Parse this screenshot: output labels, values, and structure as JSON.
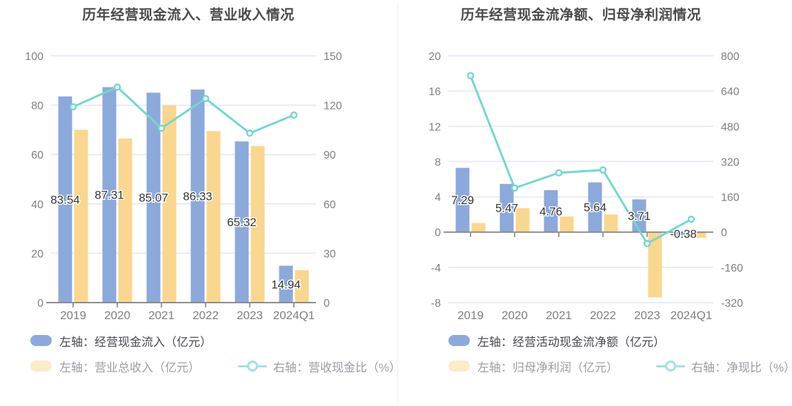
{
  "colors": {
    "bar_blue": "#8CA9DB",
    "bar_yellow": "#FAD78E",
    "line_teal": "#73D7CD",
    "legend_yellow": "#FCEBC9",
    "legend_teal": "#9FE2DC",
    "grid": "#E6EBF5",
    "axis_line": "#8A8A8A",
    "tick": "#999999",
    "axis_text": "#7F7F7F",
    "title": "#4A4A4A",
    "data_label": "#333333",
    "legend_text_primary": "#47474F",
    "legend_text_secondary": "#9C9CA4",
    "divider": "#EFEFEF",
    "background": "#FFFFFF"
  },
  "chart_data": [
    {
      "type": "bar",
      "combo": "dual-axis bar + line",
      "title": "历年经营现金流入、营业收入情况",
      "categories": [
        "2019",
        "2020",
        "2021",
        "2022",
        "2023",
        "2024Q1"
      ],
      "series": [
        {
          "name": "左轴：经营现金流入（亿元）",
          "type": "bar",
          "axis": "left",
          "color_key": "bar_blue",
          "values": [
            83.54,
            87.31,
            85.07,
            86.33,
            65.32,
            14.94
          ],
          "labels": [
            "83.54",
            "87.31",
            "85.07",
            "86.33",
            "65.32",
            "14.94"
          ]
        },
        {
          "name": "左轴：营业总收入（亿元）",
          "type": "bar",
          "axis": "left",
          "color_key": "bar_yellow",
          "values": [
            70.0,
            66.5,
            80.0,
            69.5,
            63.5,
            13.1
          ]
        },
        {
          "name": "右轴：营收现金比（%）",
          "type": "line",
          "axis": "right",
          "color_key": "line_teal",
          "values": [
            119,
            131,
            106,
            124,
            103,
            114
          ]
        }
      ],
      "left_axis": {
        "min": 0,
        "max": 100,
        "tick_labels": [
          "100",
          "80",
          "60",
          "40",
          "20",
          "0"
        ]
      },
      "right_axis": {
        "min": 0,
        "max": 150,
        "tick_labels": [
          "150",
          "120",
          "90",
          "60",
          "30",
          "0"
        ]
      },
      "grid": true,
      "legend_position": "bottom-left"
    },
    {
      "type": "bar",
      "combo": "dual-axis bar + line",
      "title": "历年经营现金流净额、归母净利润情况",
      "categories": [
        "2019",
        "2020",
        "2021",
        "2022",
        "2023",
        "2024Q1"
      ],
      "series": [
        {
          "name": "左轴：经营活动现金流净额（亿元）",
          "type": "bar",
          "axis": "left",
          "color_key": "bar_blue",
          "values": [
            7.29,
            5.47,
            4.76,
            5.64,
            3.71,
            -0.38
          ],
          "labels": [
            "7.29",
            "5.47",
            "4.76",
            "5.64",
            "3.71",
            "-0.38"
          ]
        },
        {
          "name": "左轴：归母净利润（亿元）",
          "type": "bar",
          "axis": "left",
          "color_key": "bar_yellow",
          "values": [
            1.03,
            2.7,
            1.77,
            2.0,
            -7.4,
            -0.65
          ]
        },
        {
          "name": "右轴：净现比（%）",
          "type": "line",
          "axis": "right",
          "color_key": "line_teal",
          "values": [
            710,
            200,
            269,
            282,
            -52,
            58
          ]
        }
      ],
      "left_axis": {
        "min": -8,
        "max": 20,
        "tick_labels": [
          "20",
          "16",
          "12",
          "8",
          "4",
          "0",
          "-4",
          "-8"
        ]
      },
      "right_axis": {
        "min": -320,
        "max": 800,
        "tick_labels": [
          "800",
          "640",
          "480",
          "320",
          "160",
          "0",
          "-160",
          "-320"
        ]
      },
      "grid": true,
      "legend_position": "bottom-left"
    }
  ]
}
